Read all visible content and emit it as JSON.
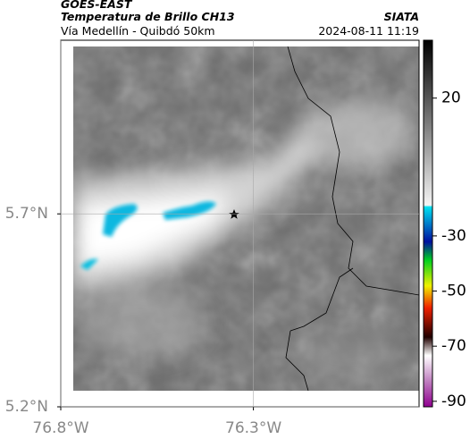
{
  "header": {
    "source": "GOES-EAST",
    "product": "Temperatura de Brillo CH13",
    "route": "Vía Medellín - Quibdó 50km",
    "agency": "SIATA",
    "timestamp": "2024-08-11 11:19"
  },
  "map": {
    "xlim": [
      -76.8,
      -75.87
    ],
    "ylim": [
      5.2,
      6.15
    ],
    "xticks": [
      {
        "value": -76.8,
        "label": "76.8°W"
      },
      {
        "value": -76.3,
        "label": "76.3°W"
      }
    ],
    "yticks": [
      {
        "value": 5.2,
        "label": "5.2°N"
      },
      {
        "value": 5.7,
        "label": "5.7°N"
      }
    ]
  },
  "colorbar": {
    "clim": [
      -92,
      41
    ],
    "ticks": [
      20,
      -30,
      -50,
      -70,
      -90
    ]
  }
}
